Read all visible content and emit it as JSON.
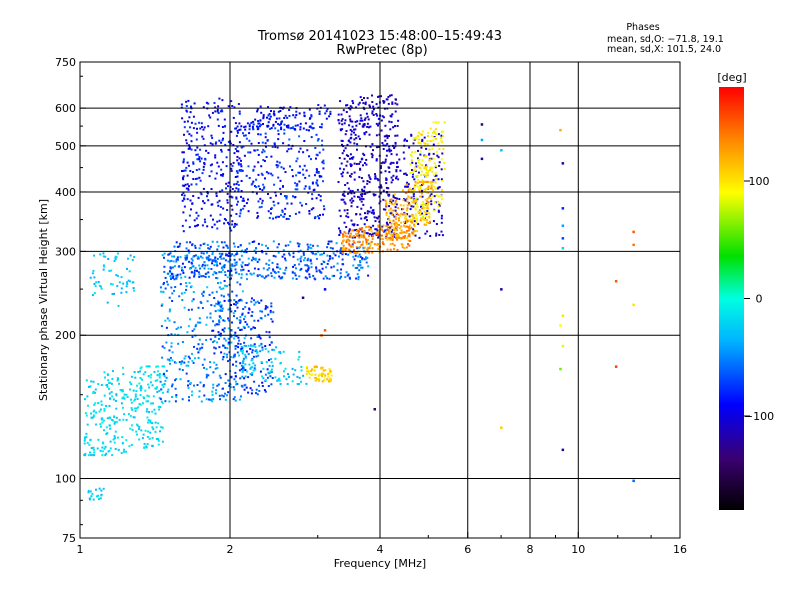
{
  "chart_data": {
    "type": "scatter",
    "title": "Tromsø 20141023 15:48:00–15:49:43",
    "subtitle": "RwPretec (8p)",
    "xlabel": "Frequency [MHz]",
    "ylabel": "Stationary phase Virtual Height [km]",
    "x_scale": "log",
    "y_scale": "log",
    "xlim": [
      1,
      16
    ],
    "ylim": [
      75,
      750
    ],
    "x_ticks": [
      1,
      2,
      4,
      6,
      8,
      10,
      16
    ],
    "y_ticks": [
      75,
      100,
      200,
      300,
      400,
      500,
      600,
      750
    ],
    "grid": true,
    "phase_info": {
      "title": "Phases",
      "line_o": "mean, sd,O: −71.8, 19.1",
      "line_x": "mean, sd,X: 101.5, 24.0"
    },
    "colorbar": {
      "label": "[deg]",
      "range": [
        -180,
        180
      ],
      "ticks": [
        100,
        0,
        -100
      ],
      "colormap": "rainbow"
    },
    "clusters": [
      {
        "f0": 1.02,
        "f1": 1.48,
        "h0": 112,
        "h1": 172,
        "phase": [
          -30,
          -5
        ],
        "n": 320,
        "trend": 0.25
      },
      {
        "f0": 1.05,
        "f1": 1.3,
        "h0": 230,
        "h1": 300,
        "phase": [
          -40,
          -10
        ],
        "n": 60,
        "trend": 0
      },
      {
        "f0": 1.04,
        "f1": 1.12,
        "h0": 90,
        "h1": 97,
        "phase": [
          -35,
          -15
        ],
        "n": 18,
        "trend": 0
      },
      {
        "f0": 1.45,
        "f1": 2.15,
        "h0": 145,
        "h1": 300,
        "phase": [
          -80,
          -20
        ],
        "n": 420,
        "trend": 0
      },
      {
        "f0": 1.85,
        "f1": 2.45,
        "h0": 150,
        "h1": 240,
        "phase": [
          -95,
          -45
        ],
        "n": 200,
        "trend": 0
      },
      {
        "f0": 2.1,
        "f1": 2.85,
        "h0": 158,
        "h1": 190,
        "phase": [
          -40,
          -10
        ],
        "n": 90,
        "trend": -0.4
      },
      {
        "f0": 1.5,
        "f1": 3.8,
        "h0": 262,
        "h1": 315,
        "phase": [
          -90,
          -35
        ],
        "n": 420,
        "trend": 0
      },
      {
        "f0": 1.6,
        "f1": 2.1,
        "h0": 330,
        "h1": 630,
        "phase": [
          -110,
          -70
        ],
        "n": 300,
        "trend": 0
      },
      {
        "f0": 2.05,
        "f1": 3.1,
        "h0": 350,
        "h1": 560,
        "phase": [
          -105,
          -60
        ],
        "n": 300,
        "trend": 0
      },
      {
        "f0": 2.2,
        "f1": 3.2,
        "h0": 540,
        "h1": 610,
        "phase": [
          -100,
          -75
        ],
        "n": 100,
        "trend": 0
      },
      {
        "f0": 3.3,
        "f1": 4.35,
        "h0": 320,
        "h1": 640,
        "phase": [
          -125,
          -90
        ],
        "n": 420,
        "trend": 0
      },
      {
        "f0": 4.1,
        "f1": 5.35,
        "h0": 320,
        "h1": 530,
        "phase": [
          -120,
          -90
        ],
        "n": 180,
        "trend": 0
      },
      {
        "f0": 3.35,
        "f1": 4.6,
        "h0": 298,
        "h1": 340,
        "phase": [
          110,
          150
        ],
        "n": 200,
        "trend": 0.3
      },
      {
        "f0": 4.1,
        "f1": 5.1,
        "h0": 320,
        "h1": 420,
        "phase": [
          100,
          140
        ],
        "n": 200,
        "trend": 0.6
      },
      {
        "f0": 4.6,
        "f1": 5.4,
        "h0": 350,
        "h1": 560,
        "phase": [
          80,
          110
        ],
        "n": 180,
        "trend": 0.4
      },
      {
        "f0": 2.85,
        "f1": 3.2,
        "h0": 160,
        "h1": 172,
        "phase": [
          90,
          120
        ],
        "n": 60,
        "trend": -0.3
      }
    ],
    "points": [
      {
        "x": 6.4,
        "y": 555,
        "phase": -130
      },
      {
        "x": 6.4,
        "y": 515,
        "phase": -40
      },
      {
        "x": 6.4,
        "y": 470,
        "phase": -120
      },
      {
        "x": 7.0,
        "y": 490,
        "phase": -30
      },
      {
        "x": 7.0,
        "y": 250,
        "phase": -120
      },
      {
        "x": 7.0,
        "y": 128,
        "phase": 110
      },
      {
        "x": 9.2,
        "y": 540,
        "phase": 120
      },
      {
        "x": 9.3,
        "y": 460,
        "phase": -120
      },
      {
        "x": 9.3,
        "y": 370,
        "phase": -80
      },
      {
        "x": 9.3,
        "y": 340,
        "phase": -40
      },
      {
        "x": 9.3,
        "y": 320,
        "phase": -70
      },
      {
        "x": 9.3,
        "y": 305,
        "phase": -20
      },
      {
        "x": 9.3,
        "y": 220,
        "phase": 100
      },
      {
        "x": 9.2,
        "y": 210,
        "phase": 90
      },
      {
        "x": 9.3,
        "y": 190,
        "phase": 85
      },
      {
        "x": 9.2,
        "y": 170,
        "phase": 60
      },
      {
        "x": 9.3,
        "y": 115,
        "phase": -120
      },
      {
        "x": 11.9,
        "y": 260,
        "phase": 150
      },
      {
        "x": 11.9,
        "y": 172,
        "phase": 160
      },
      {
        "x": 12.9,
        "y": 330,
        "phase": 150
      },
      {
        "x": 12.9,
        "y": 310,
        "phase": 140
      },
      {
        "x": 12.9,
        "y": 232,
        "phase": 100
      },
      {
        "x": 12.9,
        "y": 99,
        "phase": -60
      },
      {
        "x": 3.9,
        "y": 140,
        "phase": -140
      },
      {
        "x": 2.8,
        "y": 240,
        "phase": -130
      },
      {
        "x": 3.1,
        "y": 250,
        "phase": -90
      },
      {
        "x": 3.05,
        "y": 200,
        "phase": 140
      },
      {
        "x": 3.1,
        "y": 205,
        "phase": 150
      }
    ]
  }
}
